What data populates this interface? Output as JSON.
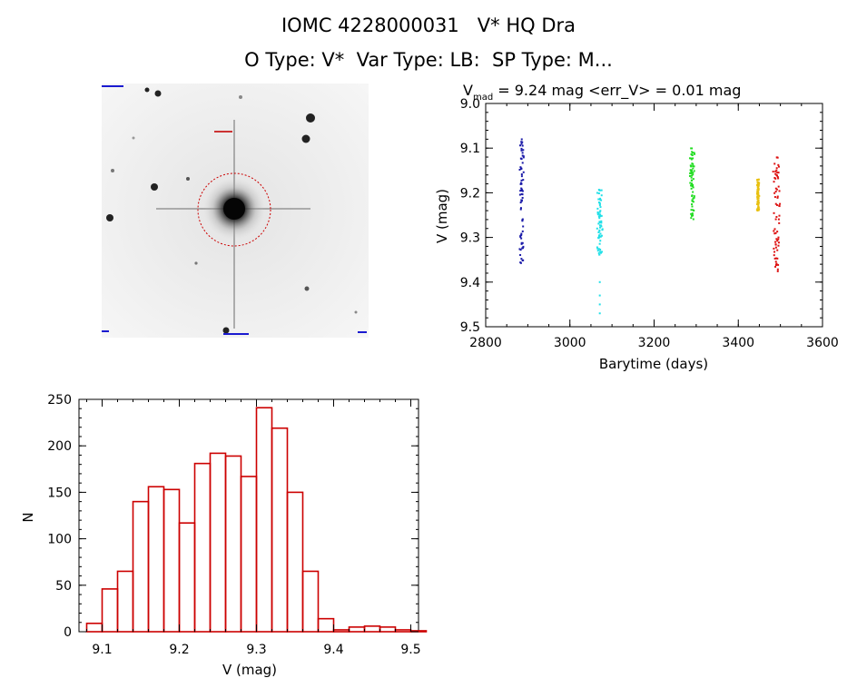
{
  "header": {
    "title": "IOMC 4228000031   V* HQ Dra",
    "subtitle": "O Type: V*  Var Type: LB:  SP Type: M..."
  },
  "chart_data": [
    {
      "type": "image",
      "panel": "sky-image",
      "markers": {
        "target_circle_color": "#cc0000",
        "label_color": "#0000cc"
      }
    },
    {
      "type": "scatter",
      "panel": "light-curve",
      "title_parts": {
        "v": "V",
        "sub": "mad",
        "rest": " = 9.24 mag <err_V> = 0.01 mag"
      },
      "xlabel": "Barytime (days)",
      "ylabel": "V (mag)",
      "xlim": [
        2800,
        3600
      ],
      "ylim": [
        9.5,
        9.0
      ],
      "y_inverted": true,
      "xticks": [
        "2800",
        "3000",
        "3200",
        "3400",
        "3600"
      ],
      "yticks": [
        "9.0",
        "9.1",
        "9.2",
        "9.3",
        "9.4",
        "9.5"
      ],
      "series": [
        {
          "color": "#1a1aa8",
          "x_range": [
            2880,
            2892
          ],
          "y_range": [
            9.08,
            9.36
          ]
        },
        {
          "color": "#22e0e8",
          "x_range": [
            3064,
            3078
          ],
          "y_range": [
            9.19,
            9.34
          ],
          "outliers": [
            9.4,
            9.43,
            9.45,
            9.47
          ]
        },
        {
          "color": "#22dd22",
          "x_range": [
            3284,
            3298
          ],
          "y_range": [
            9.1,
            9.26
          ]
        },
        {
          "color": "#e8c010",
          "x_range": [
            3444,
            3450
          ],
          "y_range": [
            9.17,
            9.24
          ]
        },
        {
          "color": "#dd1111",
          "x_range": [
            3482,
            3500
          ],
          "y_range": [
            9.12,
            9.38
          ]
        }
      ]
    },
    {
      "type": "bar",
      "panel": "histogram",
      "xlabel": "V (mag)",
      "ylabel": "N",
      "xlim": [
        9.07,
        9.51
      ],
      "ylim": [
        0,
        250
      ],
      "xticks": [
        "9.1",
        "9.2",
        "9.3",
        "9.4",
        "9.5"
      ],
      "yticks": [
        "0",
        "50",
        "100",
        "150",
        "200",
        "250"
      ],
      "bar_color": "#cc0000",
      "bin_start": 9.08,
      "bin_width": 0.02,
      "values": [
        9,
        46,
        65,
        140,
        156,
        153,
        117,
        181,
        192,
        189,
        167,
        241,
        219,
        150,
        65,
        14,
        2,
        5,
        6,
        5,
        2,
        1
      ]
    }
  ]
}
